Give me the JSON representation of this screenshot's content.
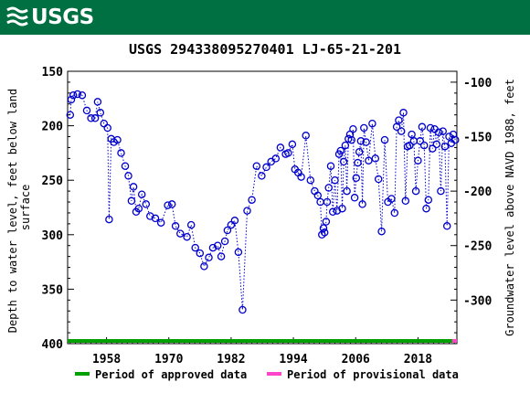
{
  "header": {
    "logo_text": "USGS"
  },
  "chart_data": {
    "type": "scatter",
    "title": "USGS 294338095270401 LJ-65-21-201",
    "ylabel_left": "Depth to water level, feet below land surface",
    "ylabel_left_lines": [
      "Depth to water level, feet below land",
      "surface"
    ],
    "ylabel_right": "Groundwater level above NAVD 1988, feet",
    "xlim": [
      1950.5,
      2025.5
    ],
    "ylim_left": [
      150,
      400
    ],
    "ylim_right": [
      -90,
      -340
    ],
    "x_ticks": [
      1958,
      1970,
      1982,
      1994,
      2006,
      2018
    ],
    "y_ticks_left": [
      150,
      200,
      250,
      300,
      350,
      400
    ],
    "y_ticks_right": [
      -100,
      -150,
      -200,
      -250,
      -300
    ],
    "grid": false,
    "series": [
      {
        "name": "",
        "color": "#0000cc",
        "marker": "open-circle",
        "line": "dotted",
        "x": [
          1951.0,
          1951.2,
          1951.6,
          1952.4,
          1953.3,
          1954.2,
          1955.0,
          1955.8,
          1956.3,
          1956.8,
          1957.5,
          1958.2,
          1958.5,
          1958.9,
          1959.4,
          1960.1,
          1960.8,
          1961.6,
          1962.2,
          1962.8,
          1963.2,
          1963.7,
          1964.2,
          1964.8,
          1965.6,
          1966.4,
          1967.4,
          1968.5,
          1969.8,
          1970.6,
          1971.3,
          1972.2,
          1973.5,
          1974.3,
          1975.1,
          1976.0,
          1976.8,
          1977.7,
          1978.5,
          1979.4,
          1980.1,
          1980.8,
          1981.3,
          1982.0,
          1982.7,
          1983.4,
          1984.2,
          1985.1,
          1986.0,
          1986.9,
          1987.9,
          1988.8,
          1989.7,
          1990.6,
          1991.5,
          1992.5,
          1993.0,
          1993.8,
          1994.3,
          1994.9,
          1995.5,
          1996.4,
          1997.3,
          1998.1,
          1998.7,
          1999.2,
          1999.5,
          1999.8,
          2000.0,
          2000.3,
          2000.5,
          2000.8,
          2001.2,
          2001.6,
          2002.0,
          2002.4,
          2002.8,
          2003.1,
          2003.4,
          2003.7,
          2004.0,
          2004.3,
          2004.6,
          2004.9,
          2005.2,
          2005.5,
          2005.8,
          2006.1,
          2006.4,
          2006.7,
          2007.0,
          2007.3,
          2007.6,
          2008.0,
          2008.5,
          2009.2,
          2009.8,
          2010.4,
          2011.0,
          2011.6,
          2012.2,
          2012.9,
          2013.5,
          2013.9,
          2014.3,
          2014.8,
          2015.2,
          2015.6,
          2016.0,
          2016.4,
          2016.8,
          2017.2,
          2017.6,
          2018.0,
          2018.4,
          2018.8,
          2019.2,
          2019.6,
          2020.0,
          2020.4,
          2020.8,
          2021.2,
          2021.6,
          2022.0,
          2022.4,
          2022.8,
          2023.2,
          2023.6,
          2024.0,
          2024.4,
          2024.8,
          2025.2
        ],
        "y": [
          190,
          176,
          172,
          171,
          172,
          186,
          193,
          193,
          178,
          188,
          198,
          202,
          286,
          212,
          215,
          213,
          225,
          237,
          246,
          269,
          256,
          279,
          276,
          263,
          272,
          283,
          285,
          289,
          273,
          272,
          292,
          299,
          302,
          291,
          312,
          317,
          329,
          321,
          312,
          310,
          320,
          306,
          296,
          291,
          287,
          316,
          369,
          278,
          268,
          237,
          246,
          238,
          233,
          230,
          220,
          226,
          225,
          217,
          240,
          243,
          247,
          209,
          250,
          260,
          264,
          270,
          300,
          294,
          298,
          288,
          270,
          257,
          237,
          279,
          250,
          278,
          226,
          223,
          276,
          233,
          218,
          260,
          212,
          208,
          213,
          203,
          266,
          248,
          234,
          224,
          214,
          272,
          202,
          215,
          232,
          198,
          230,
          249,
          297,
          213,
          270,
          267,
          280,
          201,
          195,
          205,
          188,
          269,
          219,
          218,
          208,
          214,
          260,
          232,
          214,
          201,
          218,
          276,
          268,
          202,
          221,
          203,
          217,
          206,
          260,
          205,
          219,
          292,
          210,
          216,
          208,
          213
        ]
      }
    ],
    "period_bars": [
      {
        "label": "Period of approved data",
        "color": "#00a000",
        "start": 1950.5,
        "end": 2024.6
      },
      {
        "label": "Period of provisional data",
        "color": "#ff44cc",
        "start": 2024.6,
        "end": 2025.5
      }
    ]
  }
}
